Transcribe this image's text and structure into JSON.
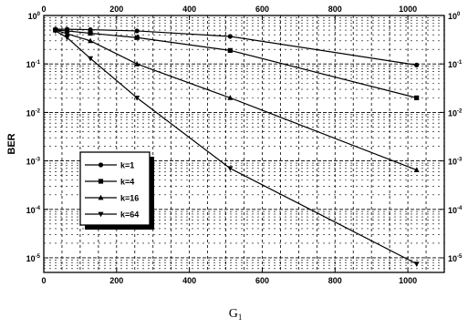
{
  "chart_data": {
    "type": "line",
    "xlabel": "G",
    "xlabel_sub": "1",
    "ylabel": "BER",
    "xlim": [
      0,
      1100
    ],
    "ylim": [
      5e-06,
      1
    ],
    "y_scale": "log",
    "grid": true,
    "x_ticks": [
      "0",
      "200",
      "400",
      "600",
      "800",
      "1000"
    ],
    "y_ticks": [
      "10",
      "10",
      "10",
      "10",
      "10",
      "10"
    ],
    "y_tick_exponents": [
      "0",
      "-1",
      "-2",
      "-3",
      "-4",
      "-5"
    ],
    "legend_position": "lower-left",
    "series": [
      {
        "name": "k=1",
        "marker": "circle",
        "x": [
          32,
          64,
          128,
          256,
          512,
          1024
        ],
        "y": [
          0.52,
          0.52,
          0.51,
          0.48,
          0.37,
          0.095
        ]
      },
      {
        "name": "k=4",
        "marker": "square",
        "x": [
          32,
          64,
          128,
          256,
          512,
          1024
        ],
        "y": [
          0.5,
          0.48,
          0.43,
          0.35,
          0.19,
          0.02
        ]
      },
      {
        "name": "k=16",
        "marker": "triangle",
        "x": [
          32,
          64,
          128,
          256,
          512,
          1024
        ],
        "y": [
          0.5,
          0.42,
          0.3,
          0.1,
          0.02,
          0.00065
        ]
      },
      {
        "name": "k=64",
        "marker": "triangle-down",
        "x": [
          32,
          64,
          128,
          256,
          512,
          1024
        ],
        "y": [
          0.48,
          0.35,
          0.13,
          0.02,
          0.0007,
          7.5e-06
        ]
      }
    ]
  }
}
